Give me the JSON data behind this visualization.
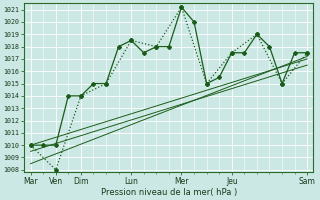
{
  "xlabel": "Pression niveau de la mer( hPa )",
  "bg_color": "#cce8e4",
  "grid_color": "#ffffff",
  "grid_minor_color": "#ddeae8",
  "line_color": "#1a5c1a",
  "ylim": [
    1008,
    1021.5
  ],
  "xtick_major_pos": [
    0,
    2,
    4,
    8,
    12,
    16,
    22
  ],
  "xtick_labels": [
    "Mar",
    "Ven",
    "Dim",
    "Lun",
    "Mer",
    "Jeu",
    "Sam"
  ],
  "series1_x": [
    0,
    1,
    2,
    3,
    4,
    5,
    6,
    7,
    8,
    9,
    10,
    11,
    12,
    13,
    14,
    15,
    16,
    17,
    18,
    19,
    20,
    21,
    22
  ],
  "series1_y": [
    1010.0,
    1010.0,
    1010.0,
    1014.0,
    1014.0,
    1015.0,
    1015.0,
    1018.0,
    1018.5,
    1017.5,
    1018.0,
    1018.0,
    1021.2,
    1020.0,
    1015.0,
    1015.5,
    1017.5,
    1017.5,
    1019.0,
    1018.0,
    1015.0,
    1017.5,
    1017.5
  ],
  "series2_x": [
    0,
    2,
    4,
    6,
    8,
    10,
    12,
    14,
    16,
    18,
    20,
    22
  ],
  "series2_y": [
    1010.0,
    1008.0,
    1014.0,
    1015.0,
    1018.5,
    1018.0,
    1021.2,
    1015.0,
    1017.5,
    1019.0,
    1015.0,
    1017.5
  ],
  "trend1_x": [
    0,
    22
  ],
  "trend1_y": [
    1010.0,
    1017.0
  ],
  "trend2_x": [
    0,
    22
  ],
  "trend2_y": [
    1008.5,
    1017.2
  ],
  "trend3_x": [
    0,
    22
  ],
  "trend3_y": [
    1009.5,
    1016.5
  ],
  "yticks": [
    1008,
    1009,
    1010,
    1011,
    1012,
    1013,
    1014,
    1015,
    1016,
    1017,
    1018,
    1019,
    1020,
    1021
  ]
}
